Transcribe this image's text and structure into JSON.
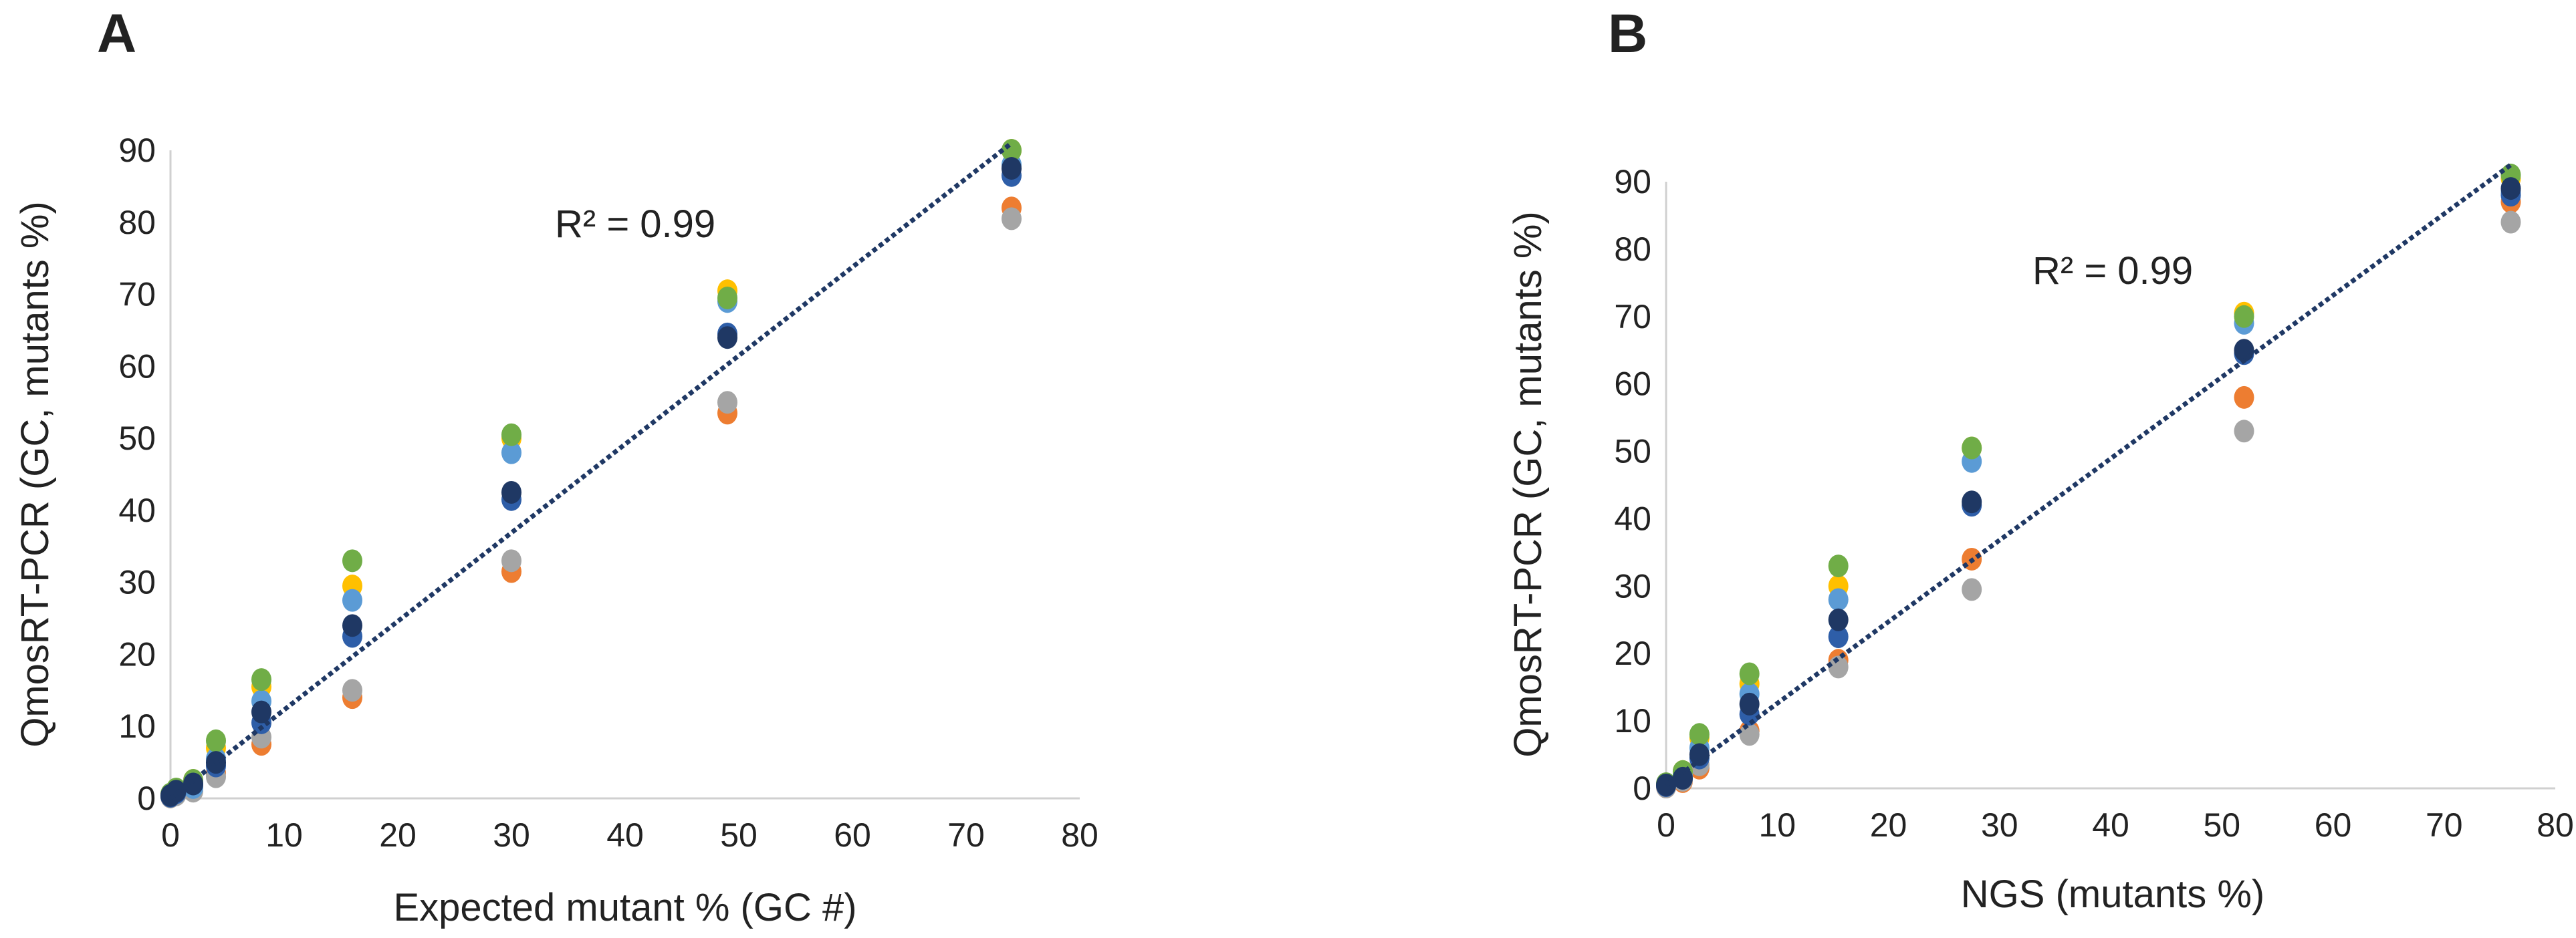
{
  "chart_data": [
    {
      "panel": "A",
      "type": "scatter",
      "xlabel": "Expected mutant % (GC #)",
      "ylabel": "QmosRT-PCR (GC, mutants %)",
      "xlim": [
        0,
        80
      ],
      "ylim": [
        0,
        90
      ],
      "xticks": [
        "0",
        "10",
        "20",
        "30",
        "40",
        "50",
        "60",
        "70",
        "80"
      ],
      "yticks": [
        "0",
        "10",
        "20",
        "30",
        "40",
        "50",
        "60",
        "70",
        "80",
        "90"
      ],
      "grid": false,
      "legend": "none",
      "annotation": "R² = 0.99",
      "trendline": {
        "x": [
          0,
          74
        ],
        "y": [
          0,
          91
        ]
      },
      "series": [
        {
          "name": "series-orange",
          "color": "#ED7D31",
          "x": [
            0,
            0.5,
            2,
            4,
            8,
            16,
            30,
            49,
            74
          ],
          "y": [
            0.2,
            0.8,
            1.5,
            3.5,
            7.5,
            14,
            31.5,
            53.5,
            82
          ]
        },
        {
          "name": "series-gray",
          "color": "#A5A5A5",
          "x": [
            0,
            0.5,
            2,
            4,
            8,
            16,
            30,
            49,
            74
          ],
          "y": [
            0.2,
            0.5,
            1,
            3,
            8.5,
            15,
            33,
            55,
            80.5
          ]
        },
        {
          "name": "series-yellow",
          "color": "#FFC000",
          "x": [
            0,
            0.5,
            2,
            4,
            8,
            16,
            30,
            49,
            74
          ],
          "y": [
            0.5,
            1.2,
            2.5,
            7,
            15.5,
            29.5,
            50,
            70.5,
            90
          ]
        },
        {
          "name": "series-lightblue",
          "color": "#5B9BD5",
          "x": [
            0,
            0.5,
            2,
            4,
            8,
            16,
            30,
            49,
            74
          ],
          "y": [
            0.3,
            0.8,
            1.5,
            5.5,
            13.5,
            27.5,
            48,
            69,
            88
          ]
        },
        {
          "name": "series-green",
          "color": "#70AD47",
          "x": [
            0,
            0.5,
            2,
            4,
            8,
            16,
            30,
            49,
            74
          ],
          "y": [
            0.6,
            1.3,
            2.5,
            8,
            16.5,
            33,
            50.5,
            69.5,
            90
          ]
        },
        {
          "name": "series-blue",
          "color": "#2E5EA8",
          "x": [
            0,
            0.5,
            2,
            4,
            8,
            16,
            30,
            49,
            74
          ],
          "y": [
            0.3,
            0.8,
            2,
            4.5,
            10.5,
            22.5,
            41.5,
            64.5,
            86.5
          ]
        },
        {
          "name": "series-navy",
          "color": "#1F3864",
          "x": [
            0,
            0.5,
            2,
            4,
            8,
            16,
            30,
            49,
            74
          ],
          "y": [
            0.4,
            1,
            2,
            5,
            12,
            24,
            42.5,
            64,
            87.5
          ]
        }
      ]
    },
    {
      "panel": "B",
      "type": "scatter",
      "xlabel": "NGS (mutants %)",
      "ylabel": "QmosRT-PCR (GC, mutants %)",
      "xlim": [
        0,
        80
      ],
      "ylim": [
        0,
        90
      ],
      "xticks": [
        "0",
        "10",
        "20",
        "30",
        "40",
        "50",
        "60",
        "70",
        "80"
      ],
      "yticks": [
        "0",
        "10",
        "20",
        "30",
        "40",
        "50",
        "60",
        "70",
        "80",
        "90"
      ],
      "grid": false,
      "legend": "none",
      "annotation": "R² = 0.99",
      "trendline": {
        "x": [
          0,
          76
        ],
        "y": [
          0.5,
          92.5
        ]
      },
      "series": [
        {
          "name": "series-orange",
          "color": "#ED7D31",
          "x": [
            0,
            1.5,
            3,
            7.5,
            15.5,
            27.5,
            52,
            76
          ],
          "y": [
            0.2,
            1,
            3,
            8.5,
            19,
            34,
            58,
            87
          ]
        },
        {
          "name": "series-gray",
          "color": "#A5A5A5",
          "x": [
            0,
            1.5,
            3,
            7.5,
            15.5,
            27.5,
            52,
            76
          ],
          "y": [
            0.2,
            1.2,
            3.5,
            8,
            18,
            29.5,
            53,
            84
          ]
        },
        {
          "name": "series-yellow",
          "color": "#FFC000",
          "x": [
            0,
            1.5,
            3,
            7.5,
            15.5,
            27.5,
            52,
            76
          ],
          "y": [
            0.6,
            2.5,
            7.5,
            15.5,
            30,
            50.5,
            70.5,
            90.5
          ]
        },
        {
          "name": "series-lightblue",
          "color": "#5B9BD5",
          "x": [
            0,
            1.5,
            3,
            7.5,
            15.5,
            27.5,
            52,
            76
          ],
          "y": [
            0.5,
            2,
            6,
            14,
            28,
            48.5,
            69,
            88.5
          ]
        },
        {
          "name": "series-green",
          "color": "#70AD47",
          "x": [
            0,
            1.5,
            3,
            7.5,
            15.5,
            27.5,
            52,
            76
          ],
          "y": [
            0.7,
            2.5,
            8,
            17,
            33,
            50.5,
            70,
            91
          ]
        },
        {
          "name": "series-blue",
          "color": "#2E5EA8",
          "x": [
            0,
            1.5,
            3,
            7.5,
            15.5,
            27.5,
            52,
            76
          ],
          "y": [
            0.4,
            1.5,
            4.5,
            11,
            22.5,
            42,
            64.5,
            88
          ]
        },
        {
          "name": "series-navy",
          "color": "#1F3864",
          "x": [
            0,
            1.5,
            3,
            7.5,
            15.5,
            27.5,
            52,
            76
          ],
          "y": [
            0.5,
            1.5,
            5,
            12.5,
            25,
            42.5,
            65,
            89
          ]
        }
      ]
    }
  ]
}
